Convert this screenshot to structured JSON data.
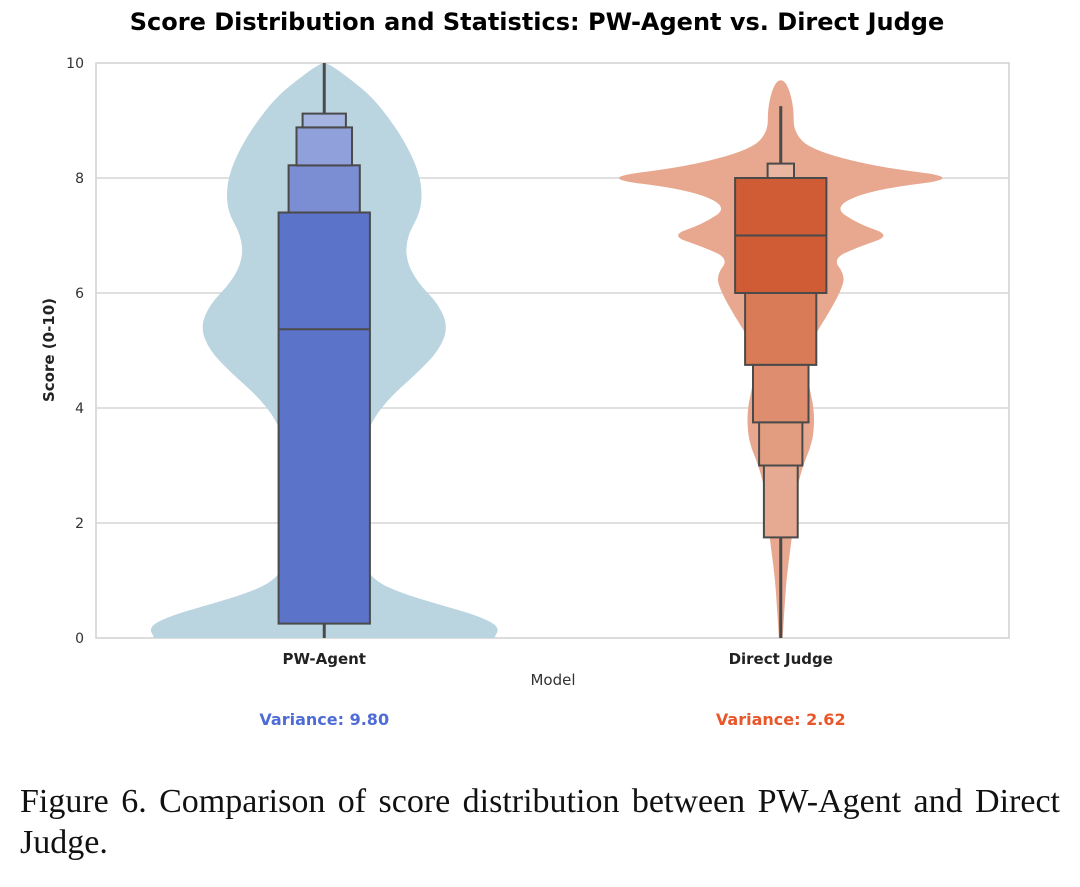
{
  "figure": {
    "caption": "Figure 6.  Comparison of score distribution between PW-Agent and Direct Judge."
  },
  "chart_data": {
    "type": "violin",
    "title": "Score Distribution and Statistics: PW-Agent vs. Direct Judge",
    "xlabel": "Model",
    "ylabel": "Score (0-10)",
    "ylim": [
      0,
      10
    ],
    "yticks": [
      0,
      2,
      4,
      6,
      8,
      10
    ],
    "grid": true,
    "categories": [
      "PW-Agent",
      "Direct Judge"
    ],
    "series": [
      {
        "name": "PW-Agent",
        "fill_color": "#bad4e0",
        "box_colors": [
          "#5b73c9",
          "#7b8ed3",
          "#8fa0da",
          "#a6b4e2"
        ],
        "violin": [
          [
            0.0,
            0.92
          ],
          [
            0.2,
            0.95
          ],
          [
            0.4,
            0.82
          ],
          [
            0.6,
            0.6
          ],
          [
            0.8,
            0.4
          ],
          [
            1.0,
            0.27
          ],
          [
            1.4,
            0.18
          ],
          [
            2.0,
            0.14
          ],
          [
            2.6,
            0.15
          ],
          [
            3.2,
            0.19
          ],
          [
            3.8,
            0.26
          ],
          [
            4.2,
            0.36
          ],
          [
            4.6,
            0.5
          ],
          [
            5.0,
            0.62
          ],
          [
            5.4,
            0.67
          ],
          [
            5.8,
            0.62
          ],
          [
            6.2,
            0.5
          ],
          [
            6.6,
            0.44
          ],
          [
            7.0,
            0.45
          ],
          [
            7.4,
            0.52
          ],
          [
            7.8,
            0.53
          ],
          [
            8.2,
            0.5
          ],
          [
            8.6,
            0.44
          ],
          [
            9.0,
            0.36
          ],
          [
            9.4,
            0.26
          ],
          [
            9.7,
            0.15
          ],
          [
            10.0,
            0.02
          ]
        ],
        "letter_values": [
          [
            0.25,
            7.4
          ],
          [
            7.4,
            8.22
          ],
          [
            8.22,
            8.88
          ],
          [
            8.88,
            9.12
          ]
        ],
        "median": 5.37,
        "whisker": [
          0.0,
          10.0
        ],
        "variance_text": "Variance: 9.80",
        "variance_color": "#4f6cd6"
      },
      {
        "name": "Direct Judge",
        "fill_color": "#e8a88f",
        "box_colors": [
          "#cf5c35",
          "#da7b58",
          "#de8e6f",
          "#e29c80",
          "#e6aa92",
          "#e9b6a2"
        ],
        "violin": [
          [
            0.0,
            0.01
          ],
          [
            0.5,
            0.02
          ],
          [
            1.0,
            0.03
          ],
          [
            1.5,
            0.05
          ],
          [
            2.0,
            0.07
          ],
          [
            2.5,
            0.08
          ],
          [
            3.0,
            0.12
          ],
          [
            3.3,
            0.16
          ],
          [
            3.6,
            0.18
          ],
          [
            4.0,
            0.18
          ],
          [
            4.4,
            0.15
          ],
          [
            4.8,
            0.15
          ],
          [
            5.2,
            0.17
          ],
          [
            5.6,
            0.25
          ],
          [
            6.0,
            0.32
          ],
          [
            6.3,
            0.35
          ],
          [
            6.6,
            0.28
          ],
          [
            6.8,
            0.42
          ],
          [
            7.0,
            0.6
          ],
          [
            7.2,
            0.42
          ],
          [
            7.5,
            0.28
          ],
          [
            7.8,
            0.5
          ],
          [
            8.0,
            1.0
          ],
          [
            8.2,
            0.5
          ],
          [
            8.5,
            0.16
          ],
          [
            8.8,
            0.07
          ],
          [
            9.2,
            0.07
          ],
          [
            9.5,
            0.05
          ],
          [
            9.7,
            0.02
          ]
        ],
        "letter_values": [
          [
            6.0,
            8.0
          ],
          [
            4.75,
            6.0
          ],
          [
            3.75,
            4.75
          ],
          [
            3.0,
            3.75
          ],
          [
            1.75,
            3.0
          ],
          [
            8.0,
            8.25
          ]
        ],
        "median": 7.0,
        "whisker": [
          0.0,
          9.25
        ],
        "variance_text": "Variance: 2.62",
        "variance_color": "#e8562a"
      }
    ]
  }
}
